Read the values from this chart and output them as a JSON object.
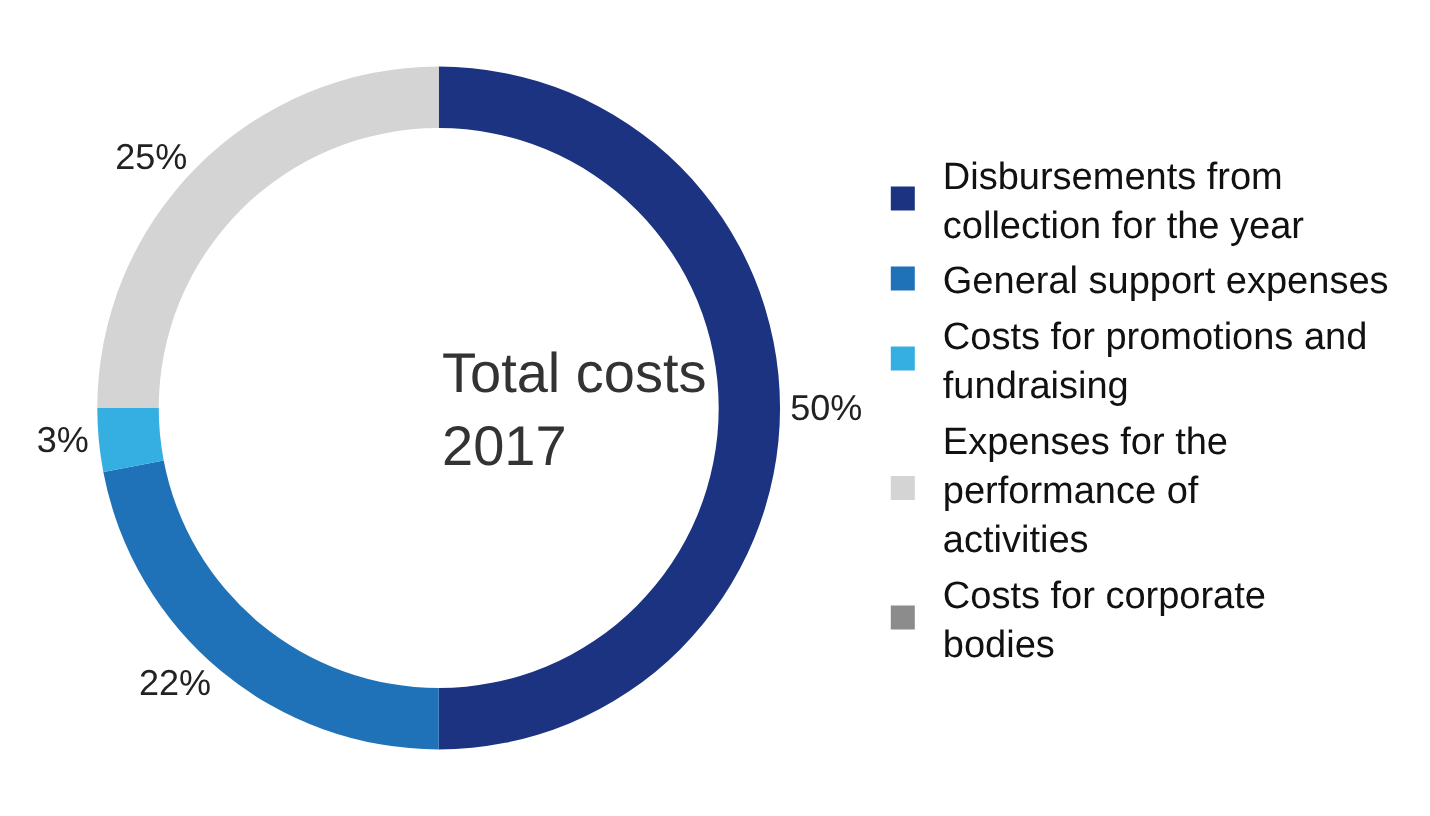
{
  "chart_data": {
    "type": "donut",
    "title": "Total costs\n2017",
    "categories": [
      "Disbursements from collection for the year",
      "General support expenses",
      "Costs for promotions and fundraising",
      "Expenses for the performance of activities",
      "Costs for corporate bodies"
    ],
    "values": [
      50,
      22,
      3,
      25,
      0
    ],
    "value_labels": [
      "50%",
      "22%",
      "3%",
      "25%",
      null
    ],
    "colors": [
      "#1b3380",
      "#1f71b8",
      "#35aee2",
      "#d4d4d4",
      "#8c8c8c"
    ],
    "legend": "right"
  }
}
